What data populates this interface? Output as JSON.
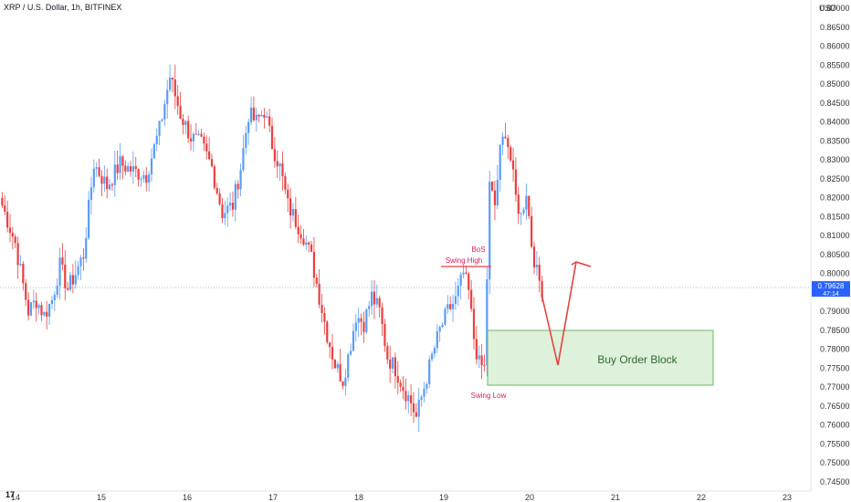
{
  "header": {
    "title": "XRP / U.S. Dollar, 1h, BITFINEX",
    "currency": "USD"
  },
  "price_badge": {
    "price": "0.79628",
    "countdown": "47:14"
  },
  "colors": {
    "up": "#5b9cf6",
    "down": "#e8403f",
    "block_fill": "#d8efd4",
    "block_stroke": "#6cb86a",
    "annotation": "#d81b60",
    "arrow": "#e8403f",
    "badge": "#2962ff"
  },
  "annotations": {
    "bos": "BoS",
    "swing_high": "Swing High",
    "swing_low": "Swing Low",
    "order_block": "Buy Order Block"
  },
  "chart_data": {
    "type": "candlestick",
    "title": "XRP / U.S. Dollar, 1h, BITFINEX",
    "ylabel": "USD",
    "ylim": [
      0.743,
      0.872
    ],
    "yticks": [
      "0.74500",
      "0.75000",
      "0.75500",
      "0.76000",
      "0.76500",
      "0.77000",
      "0.77500",
      "0.78000",
      "0.78500",
      "0.79000",
      "0.79500",
      "0.80000",
      "0.80500",
      "0.81000",
      "0.81500",
      "0.82000",
      "0.82500",
      "0.83000",
      "0.83500",
      "0.84000",
      "0.84500",
      "0.85000",
      "0.85500",
      "0.86000",
      "0.86500",
      "0.87000"
    ],
    "xticks": [
      "14",
      "15",
      "16",
      "17",
      "18",
      "19",
      "20",
      "21",
      "22",
      "23"
    ],
    "last_price": 0.79628,
    "anchors": [
      [
        0,
        0.818
      ],
      [
        5,
        0.808
      ],
      [
        8,
        0.797
      ],
      [
        10,
        0.79
      ],
      [
        13,
        0.793
      ],
      [
        16,
        0.789
      ],
      [
        19,
        0.793
      ],
      [
        22,
        0.802
      ],
      [
        25,
        0.796
      ],
      [
        28,
        0.8
      ],
      [
        31,
        0.805
      ],
      [
        35,
        0.829
      ],
      [
        40,
        0.823
      ],
      [
        45,
        0.829
      ],
      [
        50,
        0.827
      ],
      [
        55,
        0.826
      ],
      [
        60,
        0.838
      ],
      [
        64,
        0.852
      ],
      [
        68,
        0.842
      ],
      [
        72,
        0.836
      ],
      [
        76,
        0.834
      ],
      [
        80,
        0.828
      ],
      [
        84,
        0.816
      ],
      [
        88,
        0.818
      ],
      [
        91,
        0.828
      ],
      [
        94,
        0.842
      ],
      [
        97,
        0.84
      ],
      [
        100,
        0.843
      ],
      [
        103,
        0.834
      ],
      [
        106,
        0.828
      ],
      [
        109,
        0.818
      ],
      [
        112,
        0.814
      ],
      [
        115,
        0.81
      ],
      [
        118,
        0.804
      ],
      [
        121,
        0.794
      ],
      [
        124,
        0.784
      ],
      [
        127,
        0.776
      ],
      [
        130,
        0.772
      ],
      [
        132,
        0.778
      ],
      [
        135,
        0.789
      ],
      [
        138,
        0.787
      ],
      [
        141,
        0.794
      ],
      [
        144,
        0.79
      ],
      [
        147,
        0.778
      ],
      [
        150,
        0.775
      ],
      [
        153,
        0.77
      ],
      [
        156,
        0.766
      ],
      [
        158,
        0.762
      ],
      [
        161,
        0.77
      ],
      [
        164,
        0.778
      ],
      [
        167,
        0.785
      ],
      [
        170,
        0.79
      ],
      [
        173,
        0.793
      ],
      [
        176,
        0.8
      ],
      [
        178,
        0.795
      ],
      [
        180,
        0.783
      ],
      [
        182,
        0.776
      ],
      [
        184,
        0.775
      ],
      [
        186,
        0.823
      ],
      [
        188,
        0.818
      ],
      [
        190,
        0.832
      ],
      [
        192,
        0.838
      ],
      [
        194,
        0.83
      ],
      [
        196,
        0.82
      ],
      [
        198,
        0.815
      ],
      [
        200,
        0.822
      ],
      [
        202,
        0.808
      ],
      [
        204,
        0.8
      ],
      [
        206,
        0.796
      ]
    ],
    "candles": {
      "count": 207,
      "first_x": 2.4,
      "spacing": 2.87
    }
  }
}
